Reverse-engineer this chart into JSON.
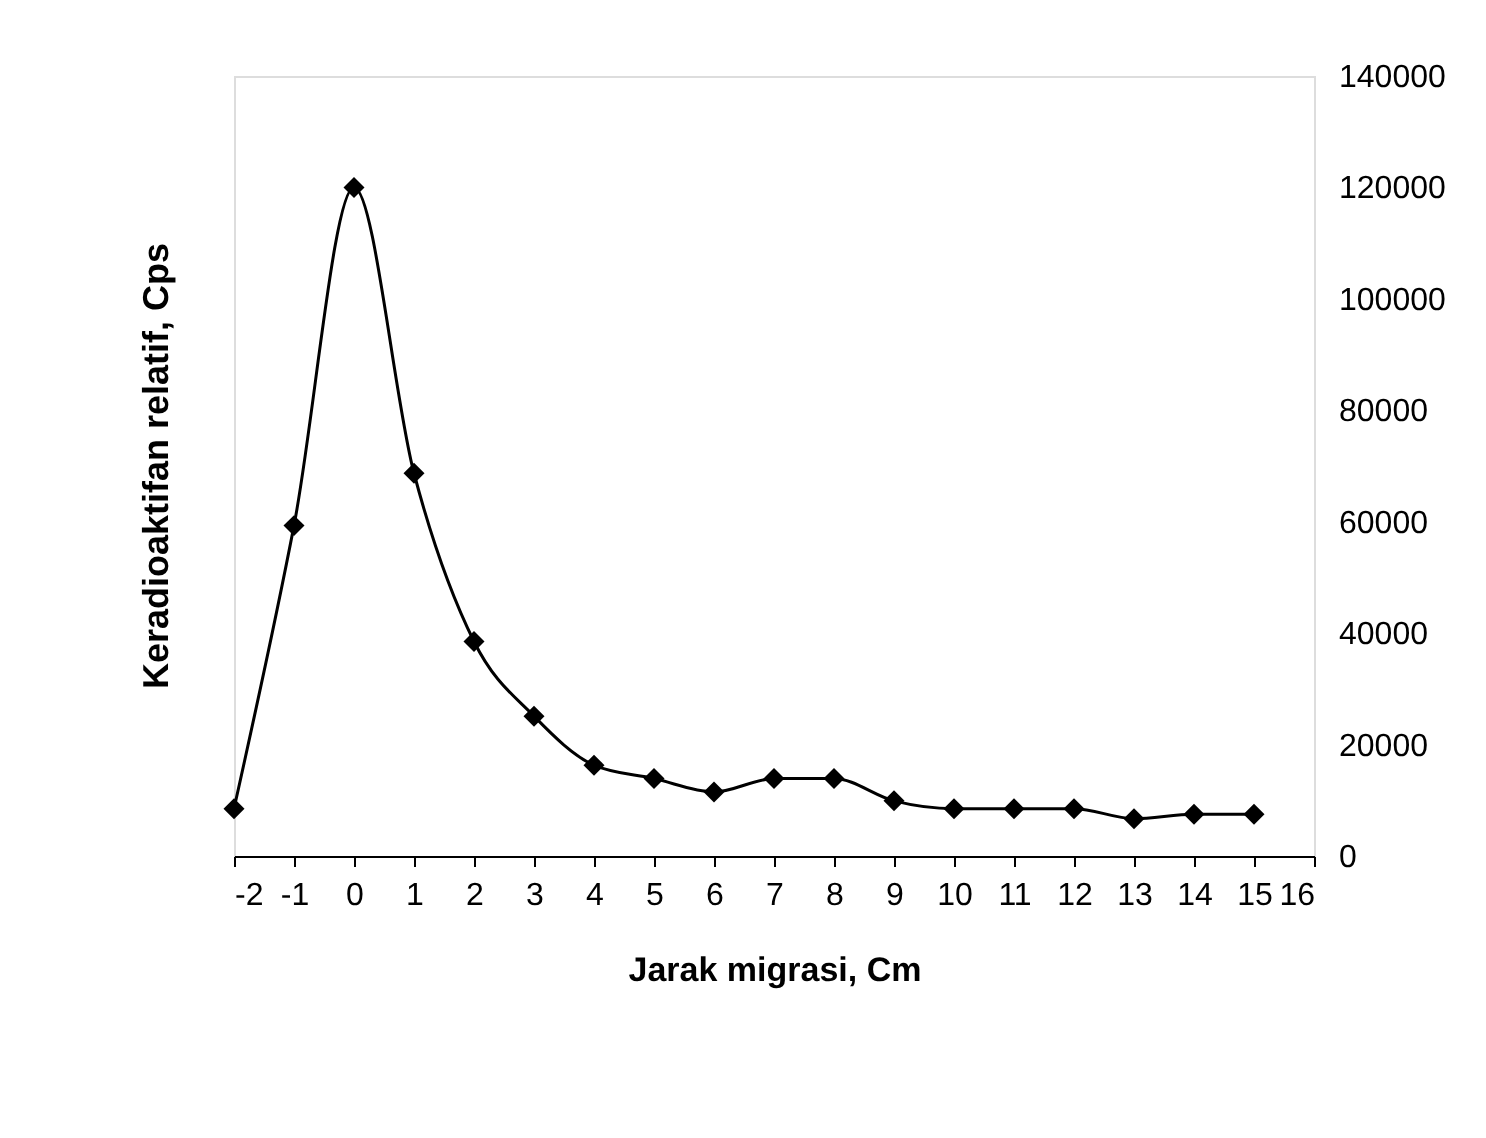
{
  "chart_data": {
    "type": "line",
    "xlabel": "Jarak migrasi, Cm",
    "ylabel": "Keradioaktifan relatif, Cps",
    "x": [
      -2,
      -1,
      0,
      1,
      2,
      3,
      4,
      5,
      6,
      7,
      8,
      9,
      10,
      11,
      12,
      13,
      14,
      15
    ],
    "series": [
      {
        "color": "#000000",
        "axis": "y2",
        "values": [
          8500,
          59300,
          120000,
          68700,
          38500,
          25100,
          16300,
          13900,
          11500,
          13900,
          13900,
          9900,
          8500,
          8500,
          8500,
          6700,
          7500,
          7500
        ]
      }
    ],
    "xlim": [
      -2,
      16
    ],
    "xticks": [
      -2,
      -1,
      0,
      1,
      2,
      3,
      4,
      5,
      6,
      7,
      8,
      9,
      10,
      11,
      12,
      13,
      14,
      15,
      16
    ],
    "y2lim": [
      0,
      140000
    ],
    "y2ticks": [
      0,
      20000,
      40000,
      60000,
      80000,
      100000,
      120000,
      140000
    ],
    "marker": "diamond",
    "line_style": "solid",
    "grid": false
  }
}
